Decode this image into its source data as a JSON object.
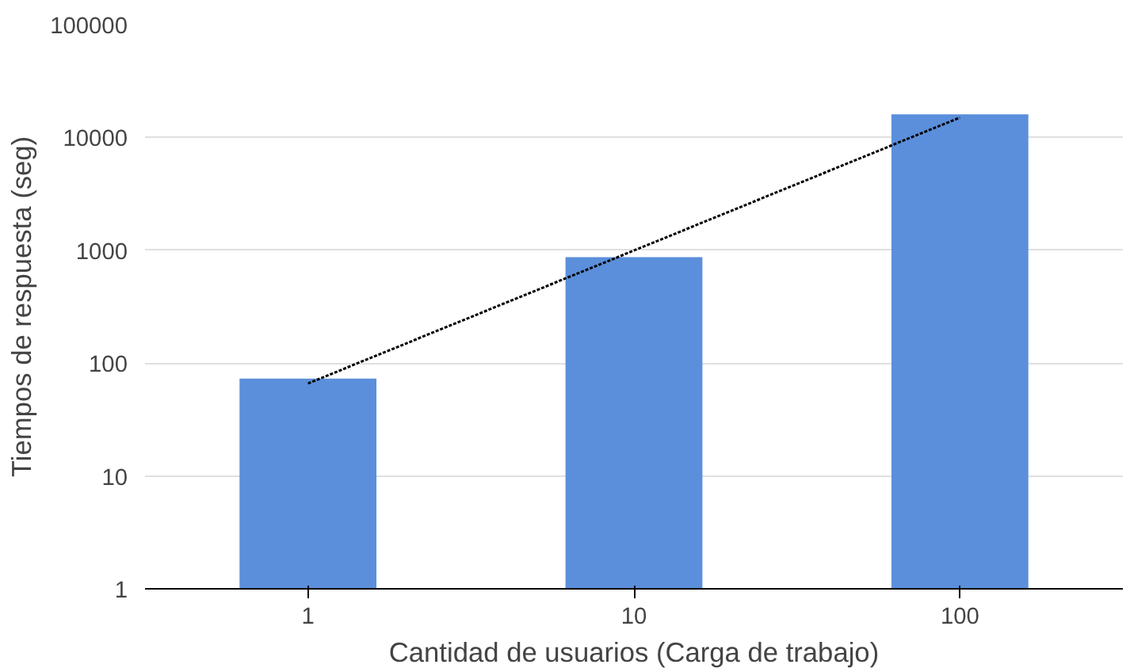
{
  "chart_data": {
    "type": "bar",
    "xlabel": "Cantidad de usuarios (Carga de trabajo)",
    "ylabel": "Tiempos de respuesta (seg)",
    "categories": [
      "1",
      "10",
      "100"
    ],
    "log": true,
    "ylim": [
      1,
      100000
    ],
    "yticks": [
      1,
      10,
      100,
      1000,
      10000,
      100000
    ],
    "grid": "y",
    "series": [
      {
        "color": "#5b8fdb",
        "values": [
          73,
          870,
          16000
        ]
      },
      {
        "type": "line",
        "color": "#000000",
        "line_style": "dotted",
        "x": [
          "1",
          "100"
        ],
        "values": [
          66,
          15000
        ]
      }
    ]
  }
}
